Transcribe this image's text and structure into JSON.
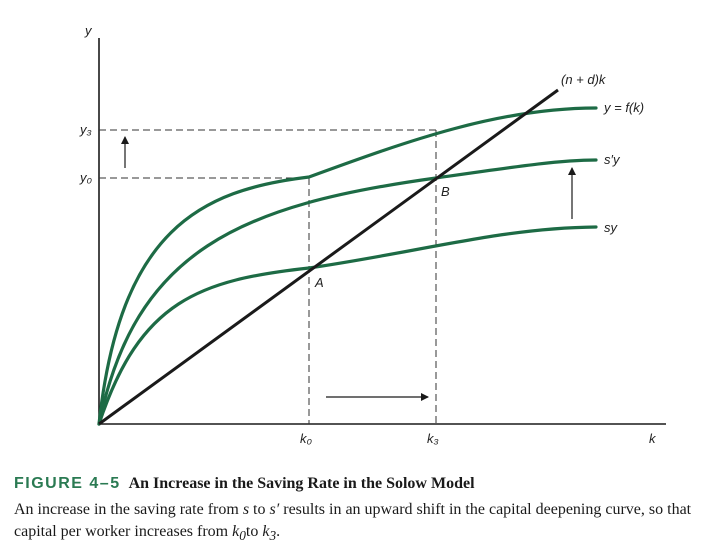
{
  "colors": {
    "curve": "#1d6b45",
    "line": "#1a1a1a",
    "dash": "#333333",
    "caption_fig": "#2a7a52"
  },
  "axes": {
    "y_label": "y",
    "x_label": "k",
    "y3_label": "y₃",
    "y0_label": "y₀",
    "k0_label": "k₀",
    "k3_label": "k₃"
  },
  "curves": {
    "line_label": "(n + d)k",
    "top_label": "y = f(k)",
    "mid_label": "s′y",
    "low_label": "sy"
  },
  "points": {
    "a_label": "A",
    "b_label": "B"
  },
  "caption": {
    "figure_number": "FIGURE 4–5",
    "title": "An Increase in the Saving Rate in the Solow Model",
    "body_1": "An increase in the saving rate from ",
    "s": "s",
    "body_2": " to ",
    "s_prime": "s′",
    "body_3": " results in an upward shift in the capital deepening curve, so that capital per worker increases from ",
    "k0_base": "k",
    "k0_sub": "0",
    "body_4": "to ",
    "k3_base": "k",
    "k3_sub": "3",
    "body_5": "."
  }
}
